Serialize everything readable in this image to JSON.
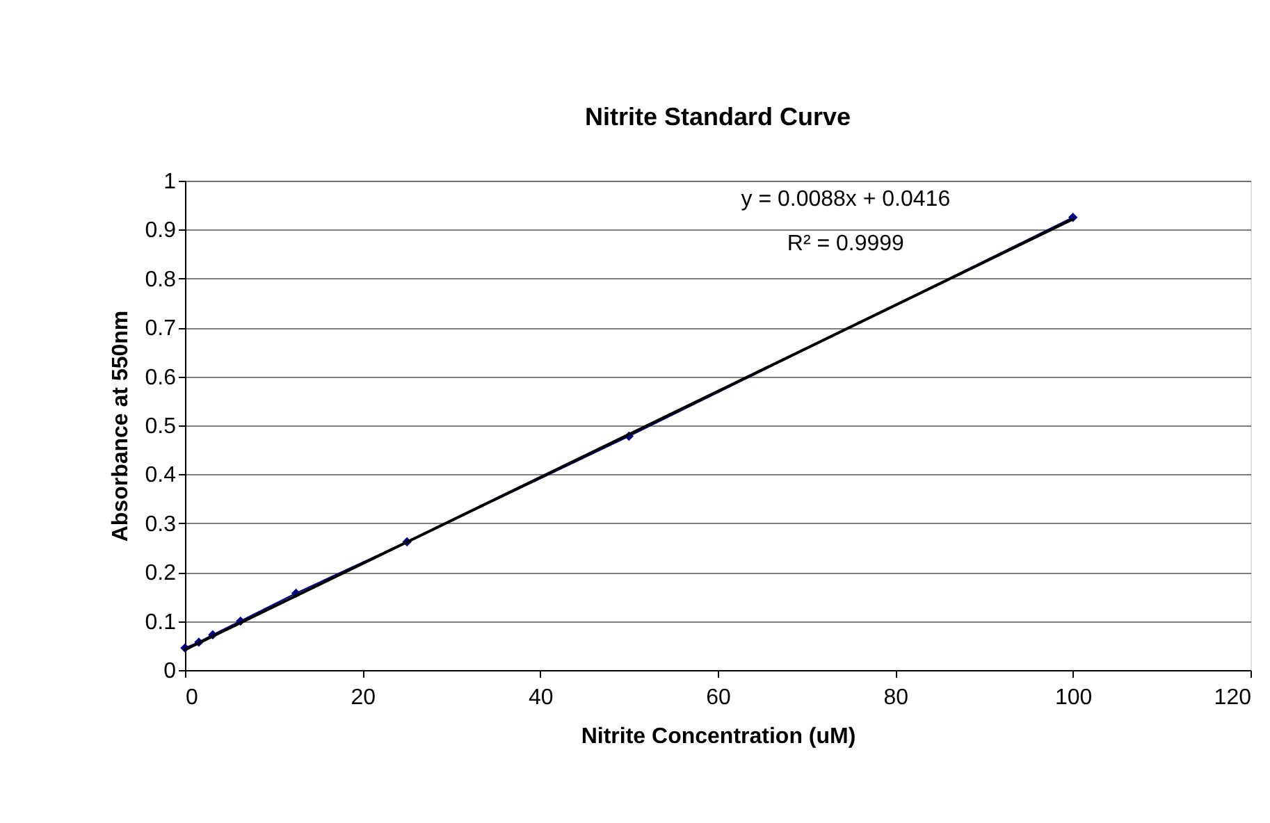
{
  "chart_data": {
    "type": "line",
    "title": "Nitrite Standard Curve",
    "xlabel": "Nitrite Concentration (uM)",
    "ylabel": "Absorbance at 550nm",
    "series": [
      {
        "color": "#000080",
        "x": [
          0,
          1.5625,
          3.125,
          6.25,
          12.5,
          25,
          50,
          100
        ],
        "values": [
          0.045,
          0.057,
          0.072,
          0.1,
          0.157,
          0.262,
          0.478,
          0.925
        ],
        "marker": "diamond"
      },
      {
        "type": "line",
        "color": "#000000",
        "x": [
          0,
          100
        ],
        "values": [
          0.0416,
          0.9216
        ],
        "marker": "none"
      }
    ],
    "annotations": [
      "y = 0.0088x + 0.0416",
      "R² = 0.9999"
    ],
    "xlim": [
      0,
      120
    ],
    "xticks": [
      0,
      20,
      40,
      60,
      80,
      100,
      120
    ],
    "ylim": [
      0,
      1
    ],
    "yticks": [
      0,
      0.1,
      0.2,
      0.3,
      0.4,
      0.5,
      0.6,
      0.7,
      0.8,
      0.9,
      1
    ],
    "grid": "y"
  }
}
